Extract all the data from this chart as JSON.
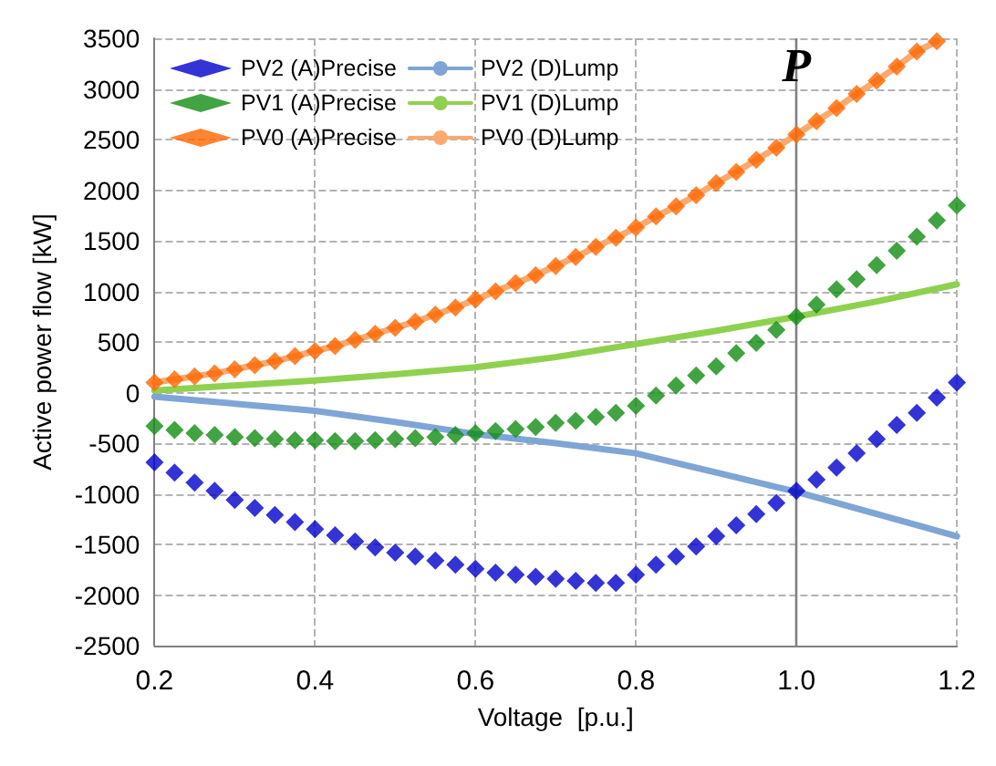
{
  "chart_data": {
    "type": "scatter",
    "xlabel": "Voltage  [p.u.]",
    "ylabel": "Active power flow [kW]",
    "x": [
      0.2,
      0.225,
      0.25,
      0.275,
      0.3,
      0.325,
      0.35,
      0.375,
      0.4,
      0.425,
      0.45,
      0.475,
      0.5,
      0.525,
      0.55,
      0.575,
      0.6,
      0.625,
      0.65,
      0.675,
      0.7,
      0.725,
      0.75,
      0.775,
      0.8,
      0.825,
      0.85,
      0.875,
      0.9,
      0.925,
      0.95,
      0.975,
      1.0,
      1.025,
      1.05,
      1.075,
      1.1,
      1.125,
      1.15,
      1.175,
      1.2
    ],
    "series": [
      {
        "name": "PV2 (A)Precise",
        "color": "#0000cc",
        "values": [
          -690,
          -790,
          -890,
          -970,
          -1060,
          -1140,
          -1210,
          -1280,
          -1350,
          -1410,
          -1470,
          -1530,
          -1580,
          -1620,
          -1660,
          -1700,
          -1740,
          -1780,
          -1800,
          -1820,
          -1840,
          -1860,
          -1880,
          -1880,
          -1800,
          -1700,
          -1620,
          -1520,
          -1420,
          -1310,
          -1200,
          -1090,
          -970,
          -860,
          -740,
          -600,
          -460,
          -320,
          -200,
          -50,
          100
        ]
      },
      {
        "name": "PV2 (D)Lump",
        "type": "line",
        "marker": "none",
        "color": "#7fa5d6",
        "x": [
          0.2,
          0.3,
          0.4,
          0.5,
          0.6,
          0.7,
          0.8,
          0.9,
          1.0,
          1.1,
          1.2
        ],
        "values": [
          -40,
          -110,
          -180,
          -290,
          -410,
          -500,
          -600,
          -790,
          -980,
          -1200,
          -1420
        ]
      },
      {
        "name": "PV1 (A)Precise",
        "color": "#128c12",
        "values": [
          -330,
          -370,
          -400,
          -420,
          -440,
          -450,
          -460,
          -470,
          -470,
          -480,
          -480,
          -470,
          -460,
          -450,
          -440,
          -420,
          -400,
          -380,
          -360,
          -340,
          -300,
          -280,
          -240,
          -200,
          -130,
          -30,
          70,
          170,
          260,
          390,
          490,
          620,
          750,
          870,
          1020,
          1120,
          1260,
          1400,
          1540,
          1700,
          1850
        ]
      },
      {
        "name": "PV1 (D)Lump",
        "type": "line",
        "marker": "none",
        "color": "#8fd14f",
        "x": [
          0.2,
          0.3,
          0.4,
          0.5,
          0.6,
          0.7,
          0.8,
          0.9,
          1.0,
          1.1,
          1.2
        ],
        "values": [
          20,
          70,
          120,
          180,
          250,
          350,
          480,
          610,
          750,
          900,
          1070
        ]
      },
      {
        "name": "PV0 (A)Precise",
        "color": "#ff6600",
        "values": [
          100,
          130,
          160,
          190,
          230,
          270,
          310,
          360,
          410,
          460,
          520,
          580,
          640,
          700,
          770,
          840,
          920,
          1000,
          1080,
          1160,
          1250,
          1340,
          1440,
          1530,
          1630,
          1740,
          1840,
          1950,
          2070,
          2180,
          2300,
          2420,
          2550,
          2680,
          2810,
          2950,
          3080,
          3220,
          3370,
          3470,
          null
        ]
      },
      {
        "name": "PV0 (D)Lump",
        "type": "line",
        "marker": "none",
        "color": "#fbaa6f",
        "values": [
          100,
          130,
          160,
          190,
          230,
          270,
          310,
          360,
          410,
          460,
          520,
          580,
          640,
          700,
          770,
          840,
          920,
          1000,
          1080,
          1160,
          1250,
          1340,
          1440,
          1530,
          1630,
          1740,
          1840,
          1950,
          2070,
          2180,
          2300,
          2420,
          2550,
          2680,
          2810,
          2950,
          3080,
          3220,
          3370,
          3470,
          null
        ]
      }
    ],
    "xlim": [
      0.2,
      1.2
    ],
    "xticks": [
      {
        "value": 0.2,
        "label": "0.2"
      },
      {
        "value": 0.4,
        "label": "0.4"
      },
      {
        "value": 0.6,
        "label": "0.6"
      },
      {
        "value": 0.8,
        "label": "0.8"
      },
      {
        "value": 1.0,
        "label": "1.0"
      },
      {
        "value": 1.2,
        "label": "1.2"
      }
    ],
    "ylim": [
      -2500,
      3500
    ],
    "yticks": [
      -2500,
      -2000,
      -1500,
      -1000,
      -500,
      0,
      500,
      1000,
      1500,
      2000,
      2500,
      3000,
      3500
    ],
    "ref_lines": [
      {
        "axis": "x",
        "value": 1.0,
        "label": "P",
        "color": "#808080"
      }
    ],
    "grid": true,
    "legend": "top left",
    "marker": "diamond",
    "line_style": "solid"
  }
}
